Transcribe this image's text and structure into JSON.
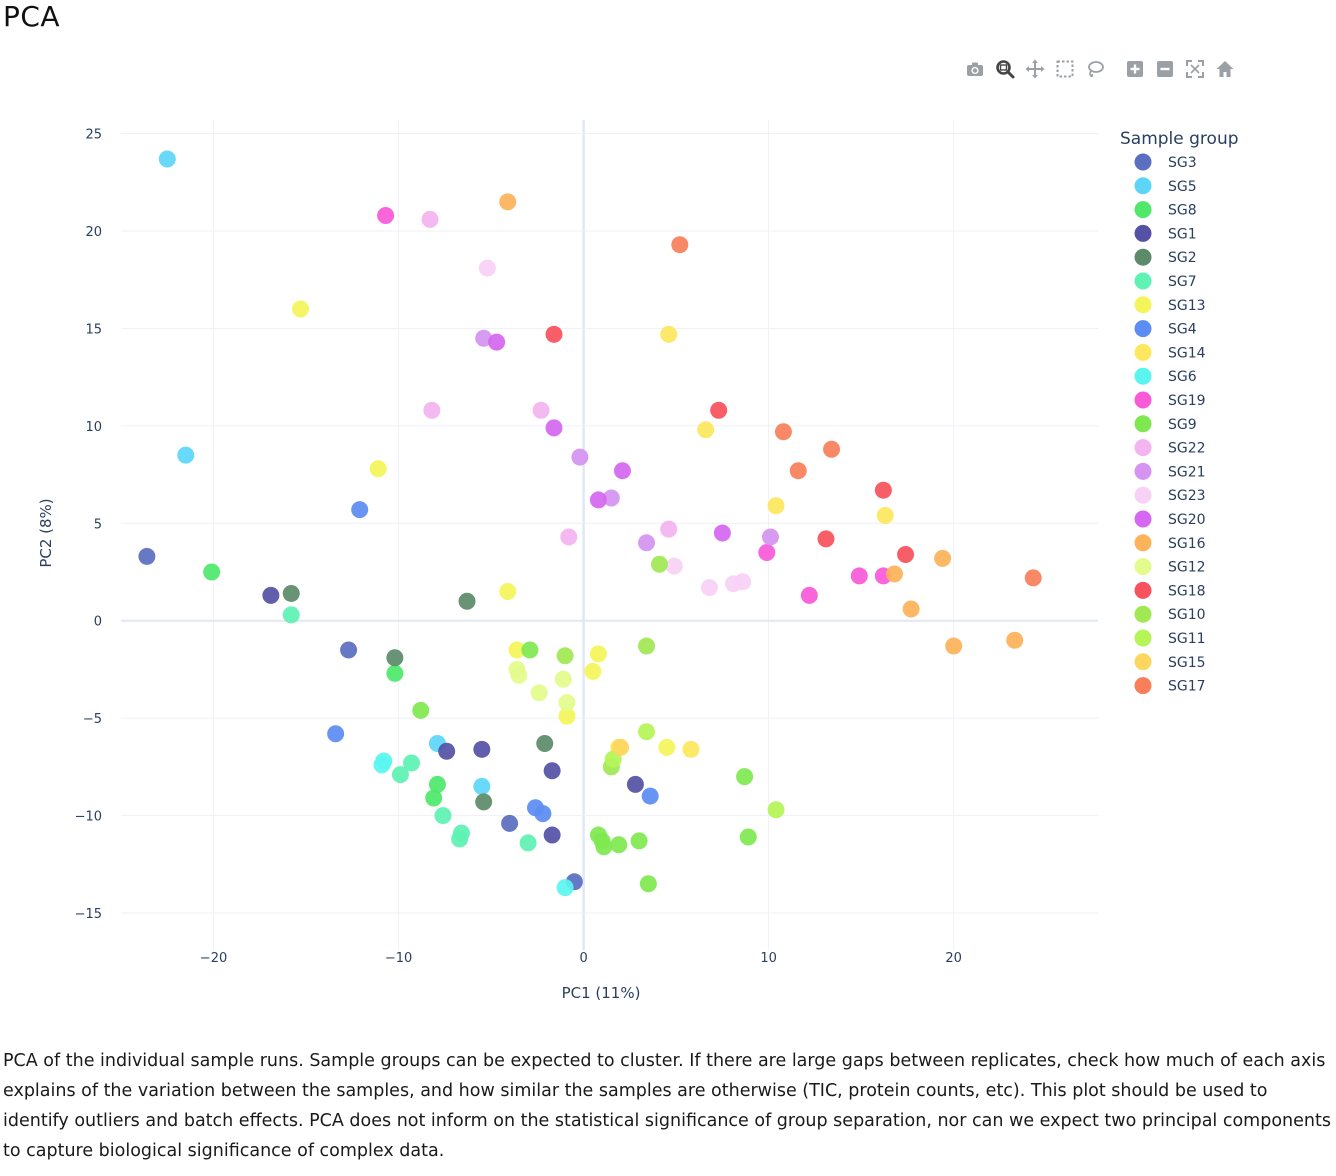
{
  "page": {
    "title": "PCA",
    "caption": "PCA of the individual sample runs. Sample groups can be expected to cluster. If there are large gaps between replicates, check how much of each axis explains of the variation between the samples, and how similar the samples are otherwise (TIC, protein counts, etc). This plot should be used to identify outliers and batch effects. PCA does not inform on the statistical significance of group separation, nor can we expect two principal components to capture biological significance of complex data."
  },
  "toolbar": {
    "buttons": [
      {
        "name": "camera-icon",
        "color": "#9aa0a6"
      },
      {
        "name": "zoom-icon",
        "color": "#444444"
      },
      {
        "name": "pan-icon",
        "color": "#9aa0a6"
      },
      {
        "name": "box-select-icon",
        "color": "#9aa0a6"
      },
      {
        "name": "lasso-select-icon",
        "color": "#9aa0a6"
      },
      {
        "name": "zoom-in-icon",
        "color": "#9aa0a6"
      },
      {
        "name": "zoom-out-icon",
        "color": "#9aa0a6"
      },
      {
        "name": "autoscale-icon",
        "color": "#9aa0a6"
      },
      {
        "name": "reset-axes-icon",
        "color": "#9aa0a6"
      }
    ]
  },
  "chart_data": {
    "type": "scatter",
    "title": "",
    "xlabel": "PC1 (11%)",
    "ylabel": "PC2 (8%)",
    "xlim": [
      -25,
      27.8
    ],
    "ylim": [
      -16.9,
      25.7
    ],
    "xticks": [
      -20,
      -10,
      0,
      10,
      20
    ],
    "yticks": [
      -15,
      -10,
      -5,
      0,
      5,
      10,
      15,
      20,
      25
    ],
    "xtick_labels": [
      "−20",
      "−10",
      "0",
      "10",
      "20"
    ],
    "ytick_labels": [
      "−15",
      "−10",
      "−5",
      "0",
      "5",
      "10",
      "15",
      "20",
      "25"
    ],
    "grid": true,
    "legend": {
      "title": "Sample group",
      "placement": "right"
    },
    "series": [
      {
        "name": "SG3",
        "color": "#5b6fc0",
        "points": [
          [
            -23.6,
            3.3
          ],
          [
            -12.7,
            -1.5
          ],
          [
            -4.0,
            -10.4
          ],
          [
            -0.5,
            -13.4
          ]
        ]
      },
      {
        "name": "SG5",
        "color": "#5cd6f7",
        "points": [
          [
            -22.5,
            23.7
          ],
          [
            -21.5,
            8.5
          ],
          [
            -7.9,
            -6.3
          ],
          [
            -5.5,
            -8.5
          ]
        ]
      },
      {
        "name": "SG8",
        "color": "#4fe86a",
        "points": [
          [
            -20.1,
            2.5
          ],
          [
            -10.2,
            -2.7
          ],
          [
            -8.1,
            -9.1
          ],
          [
            -7.9,
            -8.4
          ]
        ]
      },
      {
        "name": "SG1",
        "color": "#5552a6",
        "points": [
          [
            -16.9,
            1.3
          ],
          [
            -7.4,
            -6.7
          ],
          [
            -5.5,
            -6.6
          ],
          [
            -1.7,
            -7.7
          ],
          [
            -1.7,
            -11.0
          ],
          [
            2.8,
            -8.4
          ]
        ]
      },
      {
        "name": "SG2",
        "color": "#5d8b6a",
        "points": [
          [
            -15.8,
            1.4
          ],
          [
            -10.2,
            -1.9
          ],
          [
            -6.3,
            1.0
          ],
          [
            -5.4,
            -9.3
          ],
          [
            -2.1,
            -6.3
          ]
        ]
      },
      {
        "name": "SG7",
        "color": "#5ef2b4",
        "points": [
          [
            -15.8,
            0.3
          ],
          [
            -9.9,
            -7.9
          ],
          [
            -9.3,
            -7.3
          ],
          [
            -7.6,
            -10.0
          ],
          [
            -6.6,
            -10.9
          ],
          [
            -6.7,
            -11.2
          ],
          [
            -3.0,
            -11.4
          ]
        ]
      },
      {
        "name": "SG13",
        "color": "#f3f55a",
        "points": [
          [
            -15.3,
            16.0
          ],
          [
            -11.1,
            7.8
          ],
          [
            -4.1,
            1.5
          ],
          [
            -3.6,
            -1.5
          ],
          [
            0.8,
            -1.7
          ],
          [
            -0.9,
            -4.9
          ],
          [
            0.5,
            -2.6
          ],
          [
            4.5,
            -6.5
          ]
        ]
      },
      {
        "name": "SG4",
        "color": "#5c8df2",
        "points": [
          [
            -12.1,
            5.7
          ],
          [
            -13.4,
            -5.8
          ],
          [
            -2.6,
            -9.6
          ],
          [
            -2.2,
            -9.9
          ],
          [
            3.6,
            -9.0
          ]
        ]
      },
      {
        "name": "SG14",
        "color": "#fde75e",
        "points": [
          [
            4.6,
            14.7
          ],
          [
            6.6,
            9.8
          ],
          [
            10.4,
            5.9
          ],
          [
            16.3,
            5.4
          ],
          [
            1.9,
            -6.5
          ],
          [
            5.8,
            -6.6
          ]
        ]
      },
      {
        "name": "SG6",
        "color": "#5bf5f0",
        "points": [
          [
            -10.8,
            -7.2
          ],
          [
            -10.9,
            -7.4
          ],
          [
            -1.0,
            -13.7
          ]
        ]
      },
      {
        "name": "SG19",
        "color": "#f95ad8",
        "points": [
          [
            -10.7,
            20.8
          ],
          [
            9.9,
            3.5
          ],
          [
            12.2,
            1.3
          ],
          [
            14.9,
            2.3
          ],
          [
            16.2,
            2.3
          ]
        ]
      },
      {
        "name": "SG9",
        "color": "#7fe850",
        "points": [
          [
            -8.8,
            -4.6
          ],
          [
            -2.9,
            -1.5
          ],
          [
            1.0,
            -11.3
          ],
          [
            1.9,
            -11.5
          ],
          [
            3.5,
            -13.5
          ],
          [
            3.0,
            -11.3
          ],
          [
            8.9,
            -11.1
          ],
          [
            0.8,
            -11.0
          ],
          [
            1.1,
            -11.6
          ],
          [
            8.7,
            -8.0
          ]
        ]
      },
      {
        "name": "SG22",
        "color": "#f3b4f0",
        "points": [
          [
            -8.3,
            20.6
          ],
          [
            -8.2,
            10.8
          ],
          [
            -2.3,
            10.8
          ],
          [
            -0.8,
            4.3
          ],
          [
            4.6,
            4.7
          ]
        ]
      },
      {
        "name": "SG21",
        "color": "#d494f0",
        "points": [
          [
            -5.4,
            14.5
          ],
          [
            -0.2,
            8.4
          ],
          [
            1.5,
            6.3
          ],
          [
            3.4,
            4.0
          ],
          [
            10.1,
            4.3
          ]
        ]
      },
      {
        "name": "SG23",
        "color": "#f8d2f6",
        "points": [
          [
            -5.2,
            18.1
          ],
          [
            4.9,
            2.8
          ],
          [
            6.8,
            1.7
          ],
          [
            8.1,
            1.9
          ],
          [
            8.6,
            2.0
          ]
        ]
      },
      {
        "name": "SG20",
        "color": "#d468f0",
        "points": [
          [
            -4.7,
            14.3
          ],
          [
            -1.6,
            9.9
          ],
          [
            0.8,
            6.2
          ],
          [
            2.1,
            7.7
          ],
          [
            7.5,
            4.5
          ]
        ]
      },
      {
        "name": "SG16",
        "color": "#fdb35a",
        "points": [
          [
            -4.1,
            21.5
          ],
          [
            16.8,
            2.4
          ],
          [
            17.7,
            0.6
          ],
          [
            19.4,
            3.2
          ],
          [
            20.0,
            -1.3
          ],
          [
            23.3,
            -1.0
          ]
        ]
      },
      {
        "name": "SG12",
        "color": "#e3fb8c",
        "points": [
          [
            -3.6,
            -2.5
          ],
          [
            -3.5,
            -2.8
          ],
          [
            -2.4,
            -3.7
          ],
          [
            -1.1,
            -3.0
          ],
          [
            -0.9,
            -4.2
          ]
        ]
      },
      {
        "name": "SG18",
        "color": "#f7525d",
        "points": [
          [
            -1.6,
            14.7
          ],
          [
            7.3,
            10.8
          ],
          [
            13.1,
            4.2
          ],
          [
            16.2,
            6.7
          ],
          [
            17.4,
            3.4
          ]
        ]
      },
      {
        "name": "SG10",
        "color": "#a0e854",
        "points": [
          [
            -1.0,
            -1.8
          ],
          [
            4.1,
            2.9
          ],
          [
            1.5,
            -7.5
          ],
          [
            3.4,
            -1.3
          ]
        ]
      },
      {
        "name": "SG11",
        "color": "#b5f558",
        "points": [
          [
            1.6,
            -7.1
          ],
          [
            3.4,
            -5.7
          ],
          [
            10.4,
            -9.7
          ]
        ]
      },
      {
        "name": "SG15",
        "color": "#fdd660",
        "points": [
          [
            2.0,
            -6.5
          ]
        ]
      },
      {
        "name": "SG17",
        "color": "#f87f5a",
        "points": [
          [
            5.2,
            19.3
          ],
          [
            10.8,
            9.7
          ],
          [
            11.6,
            7.7
          ],
          [
            13.4,
            8.8
          ],
          [
            24.3,
            2.2
          ]
        ]
      }
    ]
  }
}
